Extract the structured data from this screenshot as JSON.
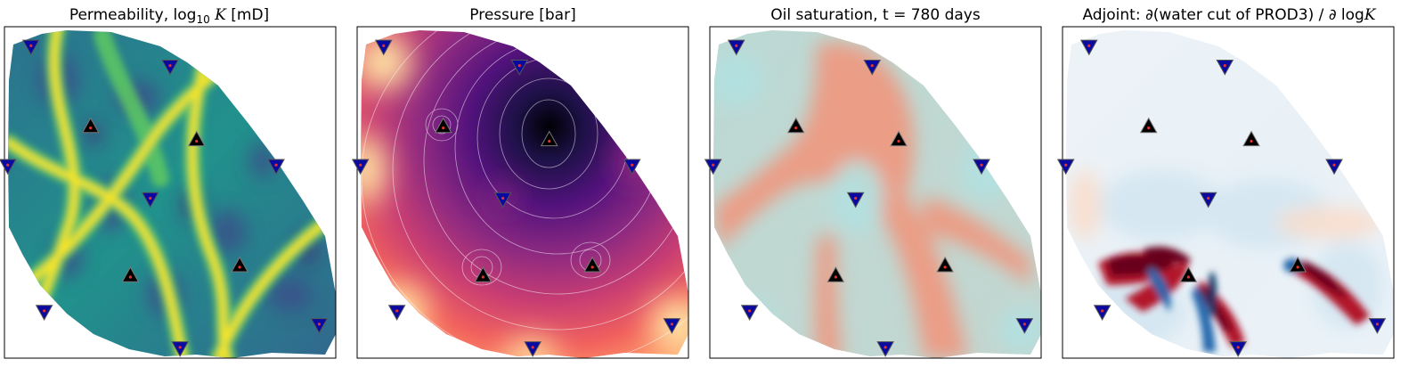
{
  "chart_data": [
    {
      "type": "heatmap",
      "title_parts": [
        "Permeability, log",
        "10",
        " ",
        "K",
        " [mD]"
      ],
      "colormap": [
        "#440154",
        "#3b528b",
        "#21918c",
        "#5ec962",
        "#fde725"
      ],
      "wells": {
        "producers": [
          [
            0.08,
            0.06
          ],
          [
            0.5,
            0.12
          ],
          [
            0.01,
            0.42
          ],
          [
            0.82,
            0.42
          ],
          [
            0.44,
            0.52
          ],
          [
            0.12,
            0.86
          ],
          [
            0.95,
            0.9
          ],
          [
            0.53,
            0.97
          ]
        ],
        "injectors": [
          [
            0.26,
            0.3
          ],
          [
            0.58,
            0.34
          ],
          [
            0.38,
            0.75
          ],
          [
            0.71,
            0.72
          ]
        ]
      }
    },
    {
      "type": "heatmap",
      "title_parts": [
        "Pressure [bar]"
      ],
      "colormap": [
        "#000004",
        "#3b0f70",
        "#8c2981",
        "#de4968",
        "#fe9f6d",
        "#fcfdbf"
      ],
      "wells": {
        "producers": [
          [
            0.08,
            0.06
          ],
          [
            0.49,
            0.12
          ],
          [
            0.01,
            0.42
          ],
          [
            0.83,
            0.42
          ],
          [
            0.44,
            0.52
          ],
          [
            0.12,
            0.86
          ],
          [
            0.95,
            0.9
          ],
          [
            0.53,
            0.97
          ]
        ],
        "injectors": [
          [
            0.26,
            0.3
          ],
          [
            0.58,
            0.34
          ],
          [
            0.38,
            0.75
          ],
          [
            0.71,
            0.72
          ]
        ]
      }
    },
    {
      "type": "heatmap",
      "title_parts": [
        "Oil saturation, t = 780 days"
      ],
      "colormap": [
        "#b2e2e2",
        "#c8d5cf",
        "#f0a88e",
        "#eb8a70"
      ],
      "wells": {
        "producers": [
          [
            0.08,
            0.06
          ],
          [
            0.49,
            0.12
          ],
          [
            0.01,
            0.42
          ],
          [
            0.82,
            0.42
          ],
          [
            0.44,
            0.52
          ],
          [
            0.12,
            0.86
          ],
          [
            0.95,
            0.9
          ],
          [
            0.53,
            0.97
          ]
        ],
        "injectors": [
          [
            0.26,
            0.3
          ],
          [
            0.57,
            0.34
          ],
          [
            0.38,
            0.75
          ],
          [
            0.71,
            0.72
          ]
        ]
      }
    },
    {
      "type": "heatmap",
      "title_parts": [
        "Adjoint: ∂(water cut of PROD3) / ∂ log",
        "K"
      ],
      "colormap": [
        "#053061",
        "#4393c3",
        "#f7f7f7",
        "#d6604d",
        "#67001f"
      ],
      "wells": {
        "producers": [
          [
            0.08,
            0.06
          ],
          [
            0.49,
            0.12
          ],
          [
            0.01,
            0.42
          ],
          [
            0.82,
            0.42
          ],
          [
            0.44,
            0.52
          ],
          [
            0.12,
            0.86
          ],
          [
            0.95,
            0.9
          ],
          [
            0.53,
            0.97
          ]
        ],
        "injectors": [
          [
            0.26,
            0.3
          ],
          [
            0.57,
            0.34
          ],
          [
            0.38,
            0.75
          ],
          [
            0.71,
            0.72
          ]
        ]
      }
    }
  ]
}
